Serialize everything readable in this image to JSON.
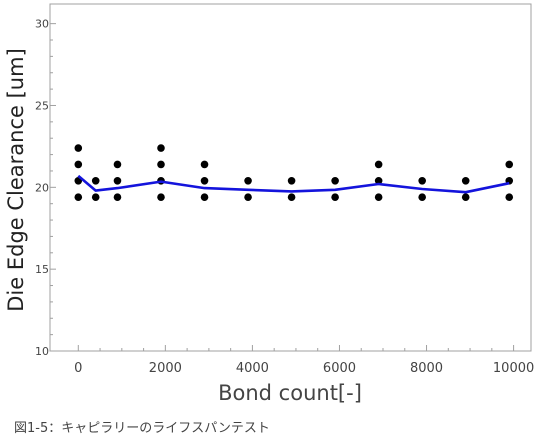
{
  "caption": "図1-5：キャピラリーのライフスパンテスト",
  "chart_data": {
    "type": "scatter",
    "xlabel": "Bond count[-]",
    "ylabel": "Die Edge Clearance [um]",
    "xlim": [
      -650,
      10400
    ],
    "ylim": [
      10,
      31.2
    ],
    "x_ticks": [
      0,
      2000,
      4000,
      6000,
      8000,
      10000
    ],
    "y_ticks": [
      10,
      15,
      20,
      25,
      30
    ],
    "y_tick_labels": [
      "10",
      "15",
      "20",
      "25",
      "30"
    ],
    "grid": false,
    "series": [
      {
        "mark": "point",
        "color": "#000000",
        "points": [
          [
            0,
            22.4
          ],
          [
            0,
            21.4
          ],
          [
            0,
            20.4
          ],
          [
            0,
            19.4
          ],
          [
            400,
            20.4
          ],
          [
            400,
            19.4
          ],
          [
            900,
            21.4
          ],
          [
            900,
            20.4
          ],
          [
            900,
            19.4
          ],
          [
            1900,
            22.4
          ],
          [
            1900,
            21.4
          ],
          [
            1900,
            20.4
          ],
          [
            1900,
            19.4
          ],
          [
            2900,
            21.4
          ],
          [
            2900,
            20.4
          ],
          [
            2900,
            19.4
          ],
          [
            3900,
            20.4
          ],
          [
            3900,
            19.4
          ],
          [
            4900,
            20.4
          ],
          [
            4900,
            19.4
          ],
          [
            5900,
            20.4
          ],
          [
            5900,
            19.4
          ],
          [
            6900,
            21.4
          ],
          [
            6900,
            20.4
          ],
          [
            6900,
            19.4
          ],
          [
            7900,
            20.4
          ],
          [
            7900,
            19.4
          ],
          [
            8900,
            20.4
          ],
          [
            8900,
            19.4
          ],
          [
            9900,
            21.4
          ],
          [
            9900,
            20.4
          ],
          [
            9900,
            19.4
          ]
        ]
      },
      {
        "mark": "line",
        "color": "#1414dc",
        "x": [
          0,
          400,
          900,
          1900,
          2900,
          3900,
          4900,
          5900,
          6900,
          7900,
          8900,
          9900
        ],
        "y": [
          20.7,
          19.8,
          19.95,
          20.35,
          19.95,
          19.85,
          19.75,
          19.85,
          20.2,
          19.9,
          19.7,
          20.25
        ]
      }
    ]
  }
}
